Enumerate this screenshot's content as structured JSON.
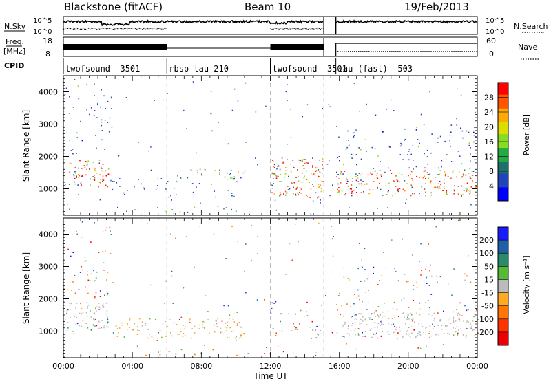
{
  "header": {
    "station": "Blackstone (fitACF)",
    "beam": "Beam 10",
    "date": "19/Feb/2013"
  },
  "panel_labels": {
    "nsky": "N.Sky",
    "freq": "Freq.",
    "freq_unit": "[MHz]",
    "cpid": "CPID",
    "nsearch": "N.Search",
    "nave": "Nave"
  },
  "nsky_ticks": [
    "10^5",
    "10^0"
  ],
  "nsearch_ticks": [
    "10^5",
    "10^0"
  ],
  "freq_ticks": [
    "18",
    "8"
  ],
  "nave_ticks": [
    "60",
    "0"
  ],
  "cpid_segments": [
    {
      "label": "twofsound -3501",
      "start": 0,
      "end": 6
    },
    {
      "label": "rbsp-tau 210",
      "start": 6,
      "end": 12
    },
    {
      "label": "twofsound -3501",
      "start": 12,
      "end": 15.1
    },
    {
      "label": "tau (fast) -503",
      "start": 15.8,
      "end": 24
    }
  ],
  "chart_data": [
    {
      "type": "heatmap",
      "title": "",
      "xlabel": "Time UT",
      "ylabel": "Slant Range [km]",
      "xlim": [
        0,
        24
      ],
      "ylim": [
        180,
        4500
      ],
      "x_ticks": [
        "00:00",
        "04:00",
        "08:00",
        "12:00",
        "16:00",
        "20:00",
        "00:00"
      ],
      "y_ticks": [
        1000,
        2000,
        3000,
        4000
      ],
      "colorbar": {
        "label": "Power [dB]",
        "ticks": [
          4,
          8,
          12,
          16,
          20,
          24,
          28
        ],
        "range": [
          0,
          32
        ],
        "colors": [
          "#0000ff",
          "#2244bb",
          "#1f6f6a",
          "#22aa44",
          "#88dd22",
          "#dddd00",
          "#ffaa00",
          "#ff5500",
          "#ff0000"
        ]
      },
      "scatter_regions": [
        {
          "t0": 0.0,
          "t1": 2.6,
          "r0": 1050,
          "r1": 1900,
          "level": "high"
        },
        {
          "t0": 0.0,
          "t1": 2.8,
          "r0": 2000,
          "r1": 4300,
          "level": "low"
        },
        {
          "t0": 3.0,
          "t1": 10.5,
          "r0": 750,
          "r1": 1350,
          "level": "low"
        },
        {
          "t0": 6.5,
          "t1": 10.5,
          "r0": 1300,
          "r1": 1650,
          "level": "mid"
        },
        {
          "t0": 3.0,
          "t1": 12.5,
          "r0": 180,
          "r1": 450,
          "level": "low"
        },
        {
          "t0": 12.0,
          "t1": 15.1,
          "r0": 750,
          "r1": 2000,
          "level": "high"
        },
        {
          "t0": 15.8,
          "t1": 24.0,
          "r0": 800,
          "r1": 1600,
          "level": "high"
        },
        {
          "t0": 15.8,
          "t1": 24.0,
          "r0": 1600,
          "r1": 3000,
          "level": "low"
        }
      ]
    },
    {
      "type": "heatmap",
      "title": "",
      "xlabel": "Time UT",
      "ylabel": "Slant Range [km]",
      "xlim": [
        0,
        24
      ],
      "ylim": [
        180,
        4500
      ],
      "x_ticks": [
        "00:00",
        "04:00",
        "08:00",
        "12:00",
        "16:00",
        "20:00",
        "00:00"
      ],
      "y_ticks": [
        1000,
        2000,
        3000,
        4000
      ],
      "colorbar": {
        "label": "Velocity [m s⁻¹]",
        "ticks": [
          200,
          100,
          50,
          15,
          -15,
          -50,
          -100,
          -200
        ],
        "colors": [
          "#1a1aff",
          "#1f5faa",
          "#2a8a6a",
          "#55bb33",
          "#bbbbbb",
          "#ffaa22",
          "#ff7700",
          "#ff3300",
          "#ee0000"
        ]
      },
      "scatter_regions": [
        {
          "t0": 0.0,
          "t1": 2.6,
          "r0": 1050,
          "r1": 1900,
          "level": "ground"
        },
        {
          "t0": 0.0,
          "t1": 2.8,
          "r0": 2000,
          "r1": 4300,
          "level": "mixed"
        },
        {
          "t0": 3.0,
          "t1": 10.5,
          "r0": 800,
          "r1": 1400,
          "level": "negative"
        },
        {
          "t0": 6.5,
          "t1": 10.5,
          "r0": 1300,
          "r1": 1650,
          "level": "mixed"
        },
        {
          "t0": 3.0,
          "t1": 12.5,
          "r0": 180,
          "r1": 450,
          "level": "mixed"
        },
        {
          "t0": 12.0,
          "t1": 15.1,
          "r0": 750,
          "r1": 2000,
          "level": "mixed"
        },
        {
          "t0": 15.8,
          "t1": 24.0,
          "r0": 800,
          "r1": 1600,
          "level": "ground"
        },
        {
          "t0": 15.8,
          "t1": 24.0,
          "r0": 1600,
          "r1": 3000,
          "level": "mixed"
        }
      ]
    }
  ]
}
